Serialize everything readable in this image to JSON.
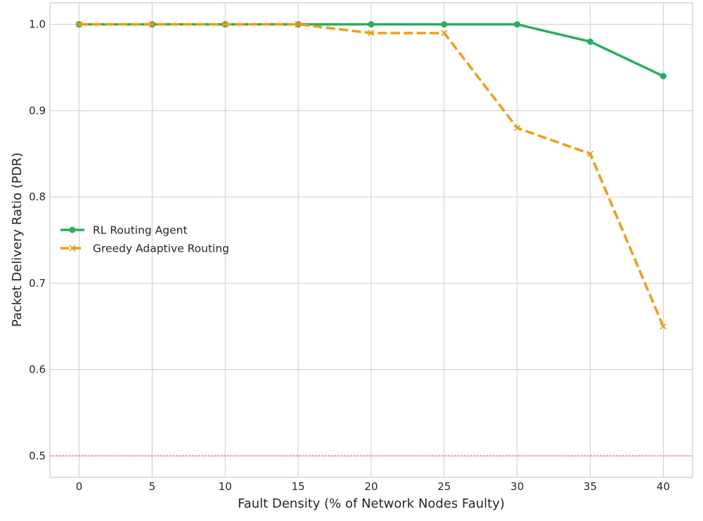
{
  "chart_data": {
    "type": "line",
    "title": "",
    "xlabel": "Fault Density (% of Network Nodes Faulty)",
    "ylabel": "Packet Delivery Ratio (PDR)",
    "x": [
      0,
      5,
      10,
      15,
      20,
      25,
      30,
      35,
      40
    ],
    "xlim": [
      -2,
      42
    ],
    "ylim": [
      0.475,
      1.025
    ],
    "xticks": [
      0,
      5,
      10,
      15,
      20,
      25,
      30,
      35,
      40
    ],
    "yticks": [
      0.5,
      0.6,
      0.7,
      0.8,
      0.9,
      1.0
    ],
    "xtick_labels": [
      "0",
      "5",
      "10",
      "15",
      "20",
      "25",
      "30",
      "35",
      "40"
    ],
    "ytick_labels": [
      "0.5",
      "0.6",
      "0.7",
      "0.8",
      "0.9",
      "1.0"
    ],
    "grid": true,
    "legend_position": "center-left",
    "series": [
      {
        "name": "RL Routing Agent",
        "values": [
          1.0,
          1.0,
          1.0,
          1.0,
          1.0,
          1.0,
          1.0,
          0.98,
          0.94
        ],
        "color": "#27ae60",
        "line_style": "solid",
        "marker": "circle"
      },
      {
        "name": "Greedy Adaptive Routing",
        "values": [
          1.0,
          1.0,
          1.0,
          1.0,
          0.99,
          0.99,
          0.88,
          0.85,
          0.65
        ],
        "color": "#f39c12",
        "line_style": "dashed",
        "marker": "x"
      }
    ],
    "reference_lines": [
      {
        "axis": "y",
        "value": 0.5,
        "color": "#e74c3c",
        "line_style": "dotted"
      }
    ]
  }
}
